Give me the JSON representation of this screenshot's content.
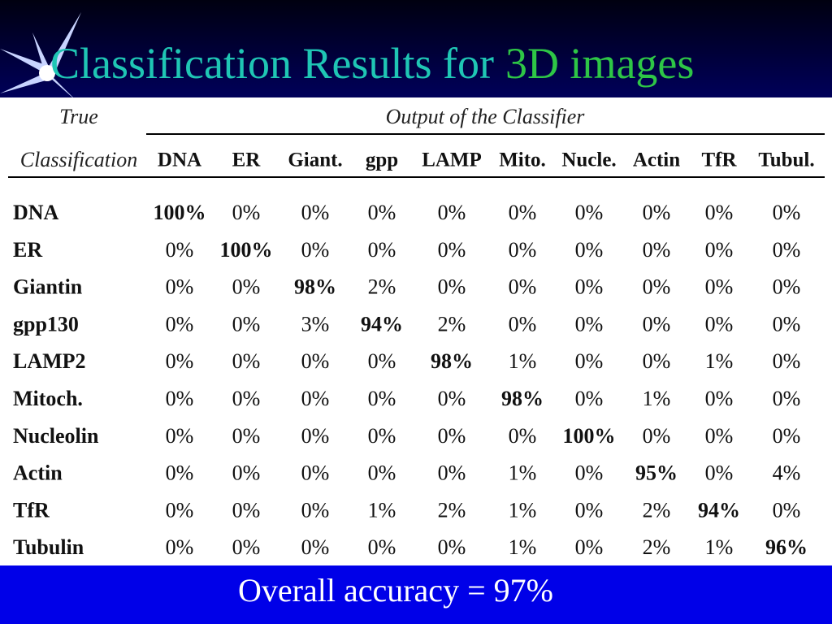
{
  "title": {
    "main": "Classification Results for",
    "highlight": "3D images"
  },
  "table": {
    "corner_top": "True",
    "corner_bottom": "Classification",
    "group_header": "Output of the Classifier",
    "columns": [
      "DNA",
      "ER",
      "Giant.",
      "gpp",
      "LAMP",
      "Mito.",
      "Nucle.",
      "Actin",
      "TfR",
      "Tubul."
    ],
    "rows": [
      {
        "label": "DNA",
        "cells": [
          "100%",
          "0%",
          "0%",
          "0%",
          "0%",
          "0%",
          "0%",
          "0%",
          "0%",
          "0%"
        ]
      },
      {
        "label": "ER",
        "cells": [
          "0%",
          "100%",
          "0%",
          "0%",
          "0%",
          "0%",
          "0%",
          "0%",
          "0%",
          "0%"
        ]
      },
      {
        "label": "Giantin",
        "cells": [
          "0%",
          "0%",
          "98%",
          "2%",
          "0%",
          "0%",
          "0%",
          "0%",
          "0%",
          "0%"
        ]
      },
      {
        "label": "gpp130",
        "cells": [
          "0%",
          "0%",
          "3%",
          "94%",
          "2%",
          "0%",
          "0%",
          "0%",
          "0%",
          "0%"
        ]
      },
      {
        "label": "LAMP2",
        "cells": [
          "0%",
          "0%",
          "0%",
          "0%",
          "98%",
          "1%",
          "0%",
          "0%",
          "1%",
          "0%"
        ]
      },
      {
        "label": "Mitoch.",
        "cells": [
          "0%",
          "0%",
          "0%",
          "0%",
          "0%",
          "98%",
          "0%",
          "1%",
          "0%",
          "0%"
        ]
      },
      {
        "label": "Nucleolin",
        "cells": [
          "0%",
          "0%",
          "0%",
          "0%",
          "0%",
          "0%",
          "100%",
          "0%",
          "0%",
          "0%"
        ]
      },
      {
        "label": "Actin",
        "cells": [
          "0%",
          "0%",
          "0%",
          "0%",
          "0%",
          "1%",
          "0%",
          "95%",
          "0%",
          "4%"
        ]
      },
      {
        "label": "TfR",
        "cells": [
          "0%",
          "0%",
          "0%",
          "1%",
          "2%",
          "1%",
          "0%",
          "2%",
          "94%",
          "0%"
        ]
      },
      {
        "label": "Tubulin",
        "cells": [
          "0%",
          "0%",
          "0%",
          "0%",
          "0%",
          "1%",
          "0%",
          "2%",
          "1%",
          "96%"
        ]
      }
    ]
  },
  "footer": "Overall accuracy = 97%"
}
